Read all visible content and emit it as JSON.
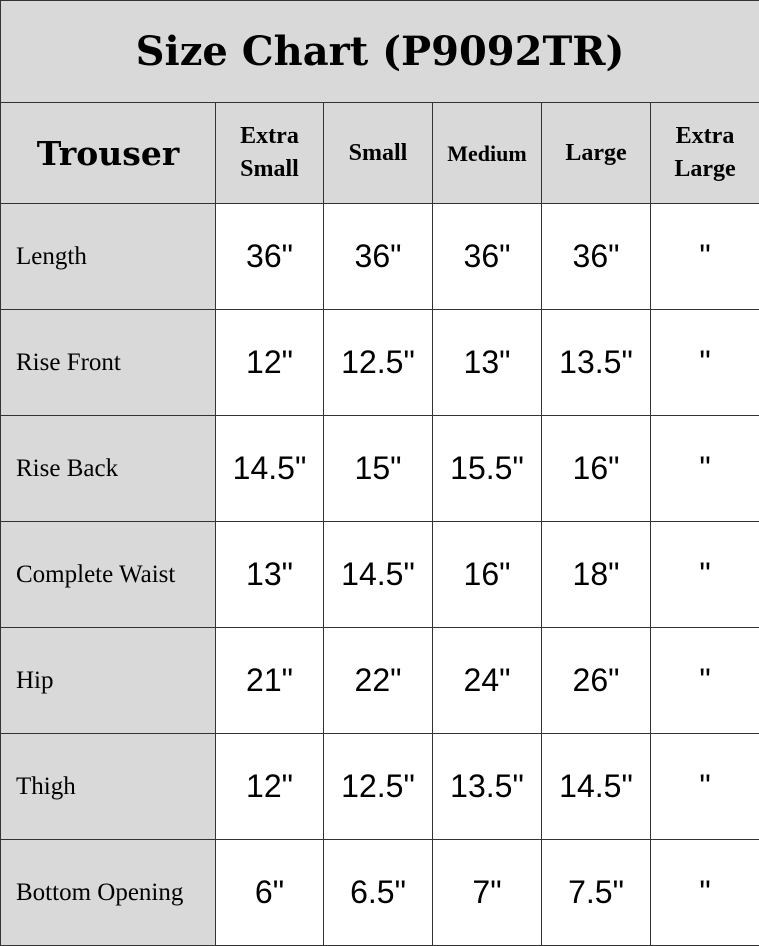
{
  "title": "Size Chart (P9092TR)",
  "headers": {
    "first": "Trouser",
    "sizes": [
      [
        "Extra",
        "Small"
      ],
      [
        "Small"
      ],
      [
        "Medium"
      ],
      [
        "Large"
      ],
      [
        "Extra",
        "Large"
      ]
    ]
  },
  "rows": [
    {
      "label": "Length",
      "values": [
        "36\"",
        "36\"",
        "36\"",
        "36\"",
        "\""
      ]
    },
    {
      "label": "Rise Front",
      "values": [
        "12\"",
        "12.5\"",
        "13\"",
        "13.5\"",
        "\""
      ]
    },
    {
      "label": "Rise Back",
      "values": [
        "14.5\"",
        "15\"",
        "15.5\"",
        "16\"",
        "\""
      ]
    },
    {
      "label": "Complete Waist",
      "values": [
        "13\"",
        "14.5\"",
        "16\"",
        "18\"",
        "\""
      ]
    },
    {
      "label": "Hip",
      "values": [
        "21\"",
        "22\"",
        "24\"",
        "26\"",
        "\""
      ]
    },
    {
      "label": "Thigh",
      "values": [
        "12\"",
        "12.5\"",
        "13.5\"",
        "14.5\"",
        "\""
      ]
    },
    {
      "label": "Bottom Opening",
      "values": [
        "6\"",
        "6.5\"",
        "7\"",
        "7.5\"",
        "\""
      ]
    }
  ]
}
